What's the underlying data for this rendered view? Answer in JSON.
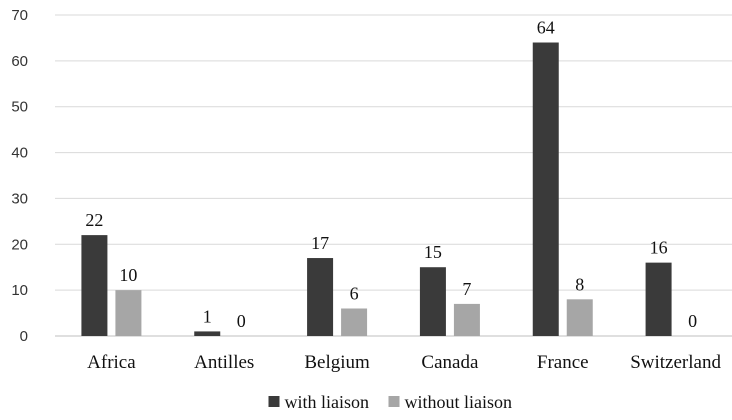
{
  "chart_data": {
    "type": "bar",
    "title": "",
    "xlabel": "",
    "ylabel": "",
    "categories": [
      "Africa",
      "Antilles",
      "Belgium",
      "Canada",
      "France",
      "Switzerland"
    ],
    "series": [
      {
        "name": "with liaison",
        "values": [
          22,
          1,
          17,
          15,
          64,
          16
        ],
        "color": "#3a3a3a"
      },
      {
        "name": "without liaison",
        "values": [
          10,
          0,
          6,
          7,
          8,
          0
        ],
        "color": "#a6a6a6"
      }
    ],
    "ylim": [
      0,
      70
    ],
    "yticks": [
      0,
      10,
      20,
      30,
      40,
      50,
      60,
      70
    ],
    "grid": true,
    "legend_position": "bottom",
    "data_labels": true
  }
}
